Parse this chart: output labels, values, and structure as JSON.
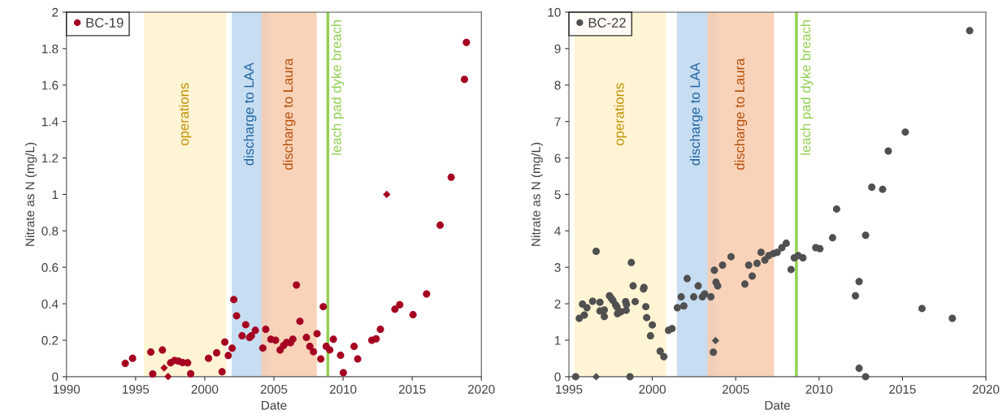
{
  "chart_data": [
    {
      "type": "scatter",
      "xlabel": "Date",
      "ylabel": "Nitrate as N (mg/L)",
      "xlim": [
        1990,
        2020
      ],
      "xticks": [
        1990,
        1995,
        2000,
        2005,
        2010,
        2015,
        2020
      ],
      "ylim": [
        0,
        2
      ],
      "yticks": [
        0,
        0.2,
        0.4,
        0.6,
        0.8,
        1,
        1.2,
        1.4,
        1.6,
        1.8,
        2
      ],
      "grid": false,
      "legend": "top left",
      "bands": [
        {
          "axis": "x",
          "from": 1995.6,
          "to": 2001.55,
          "label": "operations",
          "color": "#fff2cc"
        },
        {
          "axis": "x",
          "from": 2001.95,
          "to": 2004.6,
          "label": "discharge to LAA",
          "color": "#bdd7ee"
        },
        {
          "axis": "x",
          "from": 2004.1,
          "to": 2008.1,
          "label": "discharge to Laura",
          "color": "#f8cbad"
        }
      ],
      "ref_lines": [
        {
          "axis": "x",
          "value": 2008.9,
          "label": "leach pad dyke breach",
          "color": "#92d050"
        }
      ],
      "series": [
        {
          "name": "BC-19",
          "color": "#a50021",
          "marker": "circle",
          "x": [
            1994.25,
            1994.78,
            1996.1,
            1996.24,
            1996.94,
            1997.53,
            1997.82,
            1998.1,
            1998.4,
            1998.76,
            1998.98,
            2000.27,
            2000.86,
            2001.25,
            2001.45,
            2001.7,
            2001.98,
            2002.1,
            2002.3,
            2002.7,
            2002.96,
            2003.24,
            2003.37,
            2003.66,
            2004.2,
            2004.41,
            2004.78,
            2005.12,
            2005.45,
            2005.7,
            2005.92,
            2006.2,
            2006.37,
            2006.63,
            2006.88,
            2007.35,
            2007.6,
            2007.86,
            2008.12,
            2008.39,
            2008.57,
            2008.78,
            2009.04,
            2009.3,
            2009.82,
            2010.02,
            2010.8,
            2011.06,
            2012.08,
            2012.39,
            2012.7,
            2013.75,
            2014.1,
            2015.06,
            2016.04,
            2017.02,
            2017.82,
            2018.78,
            2018.92
          ],
          "values": [
            0.073,
            0.101,
            0.135,
            0.015,
            0.146,
            0.076,
            0.089,
            0.085,
            0.077,
            0.076,
            0.016,
            0.101,
            0.131,
            0.027,
            0.19,
            0.116,
            0.156,
            0.423,
            0.334,
            0.224,
            0.285,
            0.215,
            0.224,
            0.254,
            0.157,
            0.26,
            0.205,
            0.2,
            0.146,
            0.171,
            0.188,
            0.186,
            0.206,
            0.503,
            0.304,
            0.215,
            0.166,
            0.137,
            0.236,
            0.097,
            0.384,
            0.166,
            0.147,
            0.205,
            0.117,
            0.022,
            0.166,
            0.097,
            0.2,
            0.208,
            0.26,
            0.37,
            0.395,
            0.34,
            0.454,
            0.831,
            1.094,
            1.631,
            1.834
          ]
        },
        {
          "color": "#a50021",
          "marker": "diamond",
          "x": [
            1997.06,
            1997.35,
            2013.16
          ],
          "values": [
            0.048,
            0.001,
            1.0
          ]
        }
      ]
    },
    {
      "type": "scatter",
      "xlabel": "Date",
      "ylabel": "Nitrate as N (mg/L)",
      "xlim": [
        1995,
        2020
      ],
      "xticks": [
        1995,
        2000,
        2005,
        2010,
        2015,
        2020
      ],
      "ylim": [
        0,
        10
      ],
      "yticks": [
        0,
        1,
        2,
        3,
        4,
        5,
        6,
        7,
        8,
        9,
        10
      ],
      "grid": false,
      "legend": "top left",
      "bands": [
        {
          "axis": "x",
          "from": 1995.33,
          "to": 2000.83,
          "label": "operations",
          "color": "#fff2cc"
        },
        {
          "axis": "x",
          "from": 2001.47,
          "to": 2003.79,
          "label": "discharge to LAA",
          "color": "#bdd7ee"
        },
        {
          "axis": "x",
          "from": 2003.31,
          "to": 2007.3,
          "label": "discharge to Laura",
          "color": "#f8cbad"
        }
      ],
      "ref_lines": [
        {
          "axis": "x",
          "value": 2008.64,
          "label": "leach pad dyke breach",
          "color": "#92d050"
        }
      ],
      "series": [
        {
          "name": "BC-22",
          "color": "#505050",
          "marker": "circle",
          "x": [
            1995.4,
            1995.62,
            1995.92,
            1995.81,
            1996.08,
            1996.42,
            1996.63,
            1996.86,
            1996.86,
            1997.12,
            1997.12,
            1997.43,
            1997.54,
            1997.64,
            1997.8,
            1997.88,
            1997.91,
            1998.11,
            1998.4,
            1998.43,
            1998.45,
            1998.66,
            1998.74,
            1998.85,
            1998.97,
            1999.47,
            1999.5,
            1999.61,
            1999.66,
            2000.0,
            1999.89,
            2000.47,
            2000.69,
            2000.97,
            2001.18,
            2001.5,
            2001.73,
            2001.89,
            2002.09,
            2002.48,
            2002.75,
            2003.0,
            2003.14,
            2003.51,
            2003.66,
            2003.72,
            2003.82,
            2003.92,
            2004.21,
            2004.72,
            2005.55,
            2005.78,
            2005.99,
            2006.28,
            2006.52,
            2006.75,
            2006.98,
            2007.27,
            2007.49,
            2007.77,
            2008.03,
            2008.32,
            2008.51,
            2008.75,
            2009.03,
            2009.8,
            2010.05,
            2010.81,
            2011.05,
            2012.18,
            2012.4,
            2012.4,
            2012.79,
            2012.79,
            2013.16,
            2013.81,
            2014.15,
            2015.17,
            2016.17,
            2017.99,
            2019.03
          ],
          "values": [
            0.0,
            1.6,
            1.69,
            1.99,
            1.89,
            2.07,
            3.44,
            2.04,
            1.8,
            1.83,
            1.65,
            2.22,
            2.15,
            2.09,
            1.97,
            1.91,
            1.73,
            1.78,
            2.06,
            1.82,
            1.98,
            0.0,
            3.13,
            2.49,
            2.06,
            2.41,
            2.45,
            1.92,
            1.62,
            1.42,
            1.12,
            0.7,
            0.55,
            1.27,
            1.32,
            1.89,
            2.19,
            1.94,
            2.69,
            2.19,
            2.49,
            2.19,
            2.27,
            2.19,
            0.67,
            2.92,
            2.59,
            2.49,
            3.06,
            3.29,
            2.54,
            3.06,
            2.76,
            3.11,
            3.41,
            3.2,
            3.32,
            3.38,
            3.41,
            3.54,
            3.66,
            2.94,
            3.26,
            3.32,
            3.26,
            3.54,
            3.51,
            3.81,
            4.6,
            2.22,
            2.61,
            0.23,
            3.88,
            0.0,
            5.2,
            5.14,
            6.19,
            6.71,
            1.87,
            1.6,
            9.49
          ]
        },
        {
          "color": "#505050",
          "marker": "diamond",
          "x": [
            1996.63,
            2003.79
          ],
          "values": [
            0.0,
            0.99
          ]
        }
      ]
    }
  ]
}
